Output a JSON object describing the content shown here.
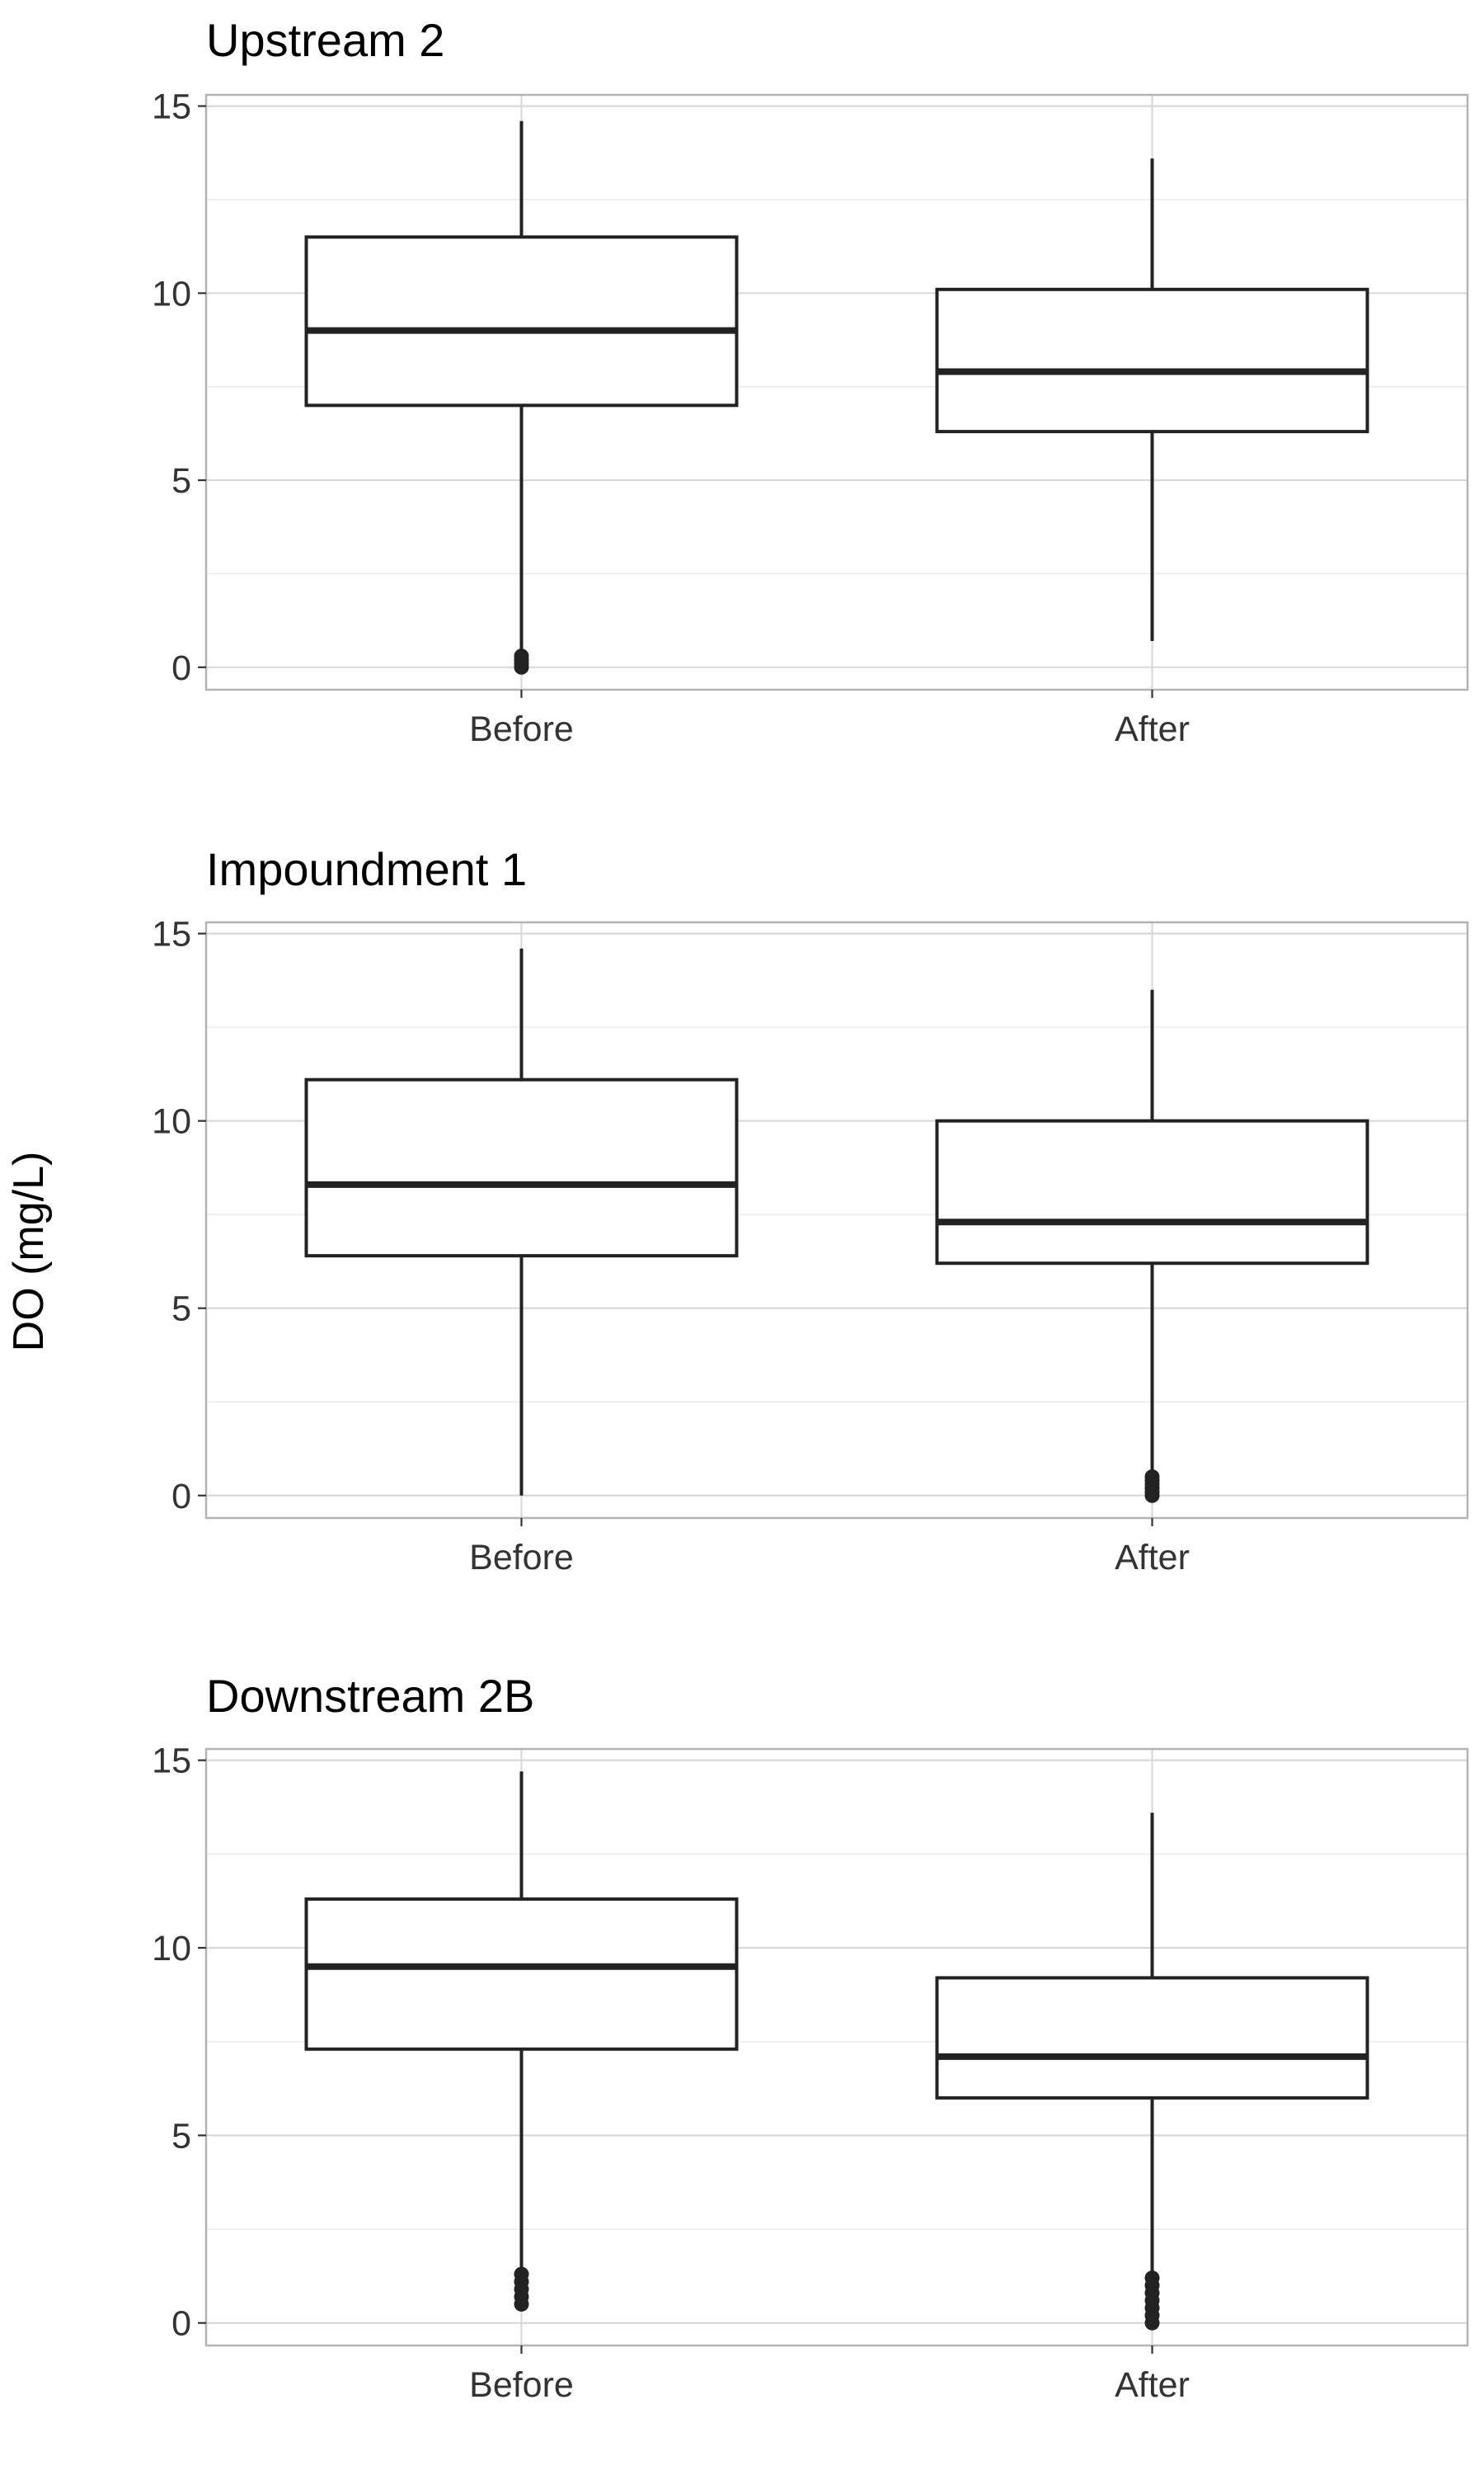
{
  "y_axis_label": "DO (mg/L)",
  "chart_data": [
    {
      "type": "box",
      "title": "Upstream 2",
      "categories": [
        "Before",
        "After"
      ],
      "ylim": [
        -0.6,
        15.3
      ],
      "yticks": [
        0,
        5,
        10,
        15
      ],
      "grid": true,
      "boxes": [
        {
          "category": "Before",
          "whisker_low": 0.3,
          "q1": 7.0,
          "median": 9.0,
          "q3": 11.5,
          "whisker_high": 14.6,
          "outliers": [
            0.0,
            0.1,
            0.2,
            0.3
          ]
        },
        {
          "category": "After",
          "whisker_low": 0.7,
          "q1": 6.3,
          "median": 7.9,
          "q3": 10.1,
          "whisker_high": 13.6,
          "outliers": []
        }
      ]
    },
    {
      "type": "box",
      "title": "Impoundment 1",
      "categories": [
        "Before",
        "After"
      ],
      "ylim": [
        -0.6,
        15.3
      ],
      "yticks": [
        0,
        5,
        10,
        15
      ],
      "grid": true,
      "boxes": [
        {
          "category": "Before",
          "whisker_low": 0.0,
          "q1": 6.4,
          "median": 8.3,
          "q3": 11.1,
          "whisker_high": 14.6,
          "outliers": []
        },
        {
          "category": "After",
          "whisker_low": 0.6,
          "q1": 6.2,
          "median": 7.3,
          "q3": 10.0,
          "whisker_high": 13.5,
          "outliers": [
            0.0,
            0.1,
            0.2,
            0.3,
            0.4,
            0.5
          ]
        }
      ]
    },
    {
      "type": "box",
      "title": "Downstream 2B",
      "categories": [
        "Before",
        "After"
      ],
      "ylim": [
        -0.6,
        15.3
      ],
      "yticks": [
        0,
        5,
        10,
        15
      ],
      "grid": true,
      "boxes": [
        {
          "category": "Before",
          "whisker_low": 1.4,
          "q1": 7.3,
          "median": 9.5,
          "q3": 11.3,
          "whisker_high": 14.7,
          "outliers": [
            0.5,
            0.7,
            0.9,
            1.1,
            1.3
          ]
        },
        {
          "category": "After",
          "whisker_low": 1.3,
          "q1": 6.0,
          "median": 7.1,
          "q3": 9.2,
          "whisker_high": 13.6,
          "outliers": [
            0.0,
            0.2,
            0.4,
            0.6,
            0.8,
            1.0,
            1.2
          ]
        }
      ]
    }
  ]
}
